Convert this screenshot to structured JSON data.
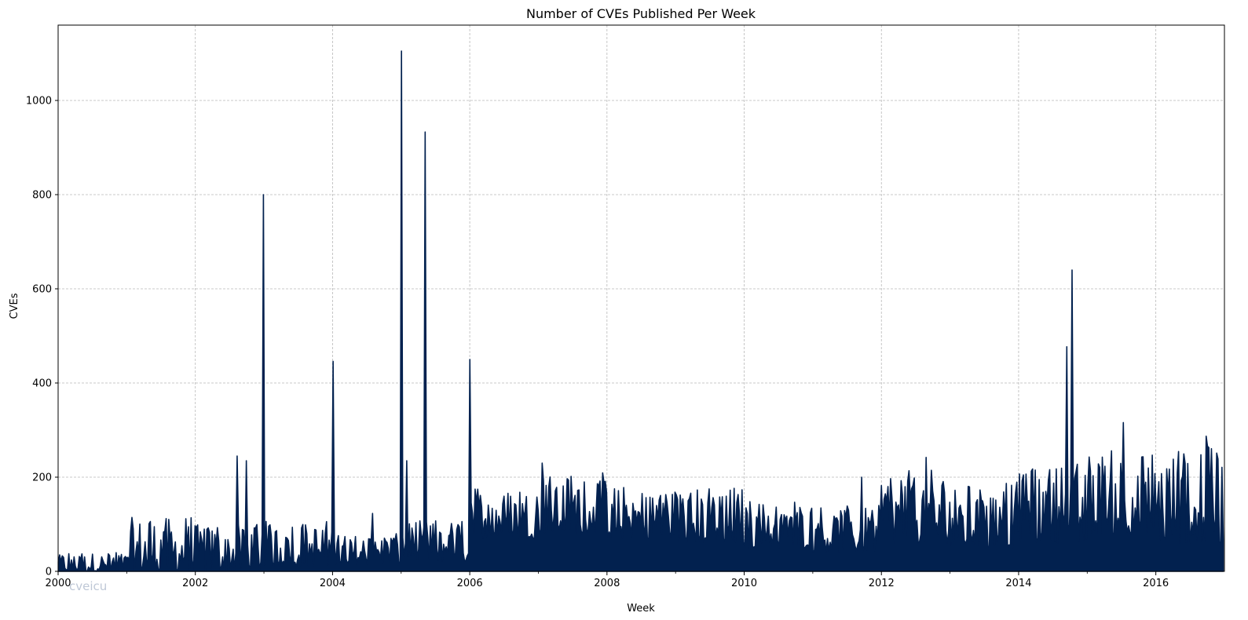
{
  "chart_data": {
    "type": "area",
    "title": "Number of CVEs Published Per Week",
    "xlabel": "Week",
    "ylabel": "CVEs",
    "xlim": [
      2000,
      2017
    ],
    "ylim": [
      0,
      1160
    ],
    "x_major_ticks": [
      2000,
      2002,
      2004,
      2006,
      2008,
      2010,
      2012,
      2014,
      2016
    ],
    "x_tick_labels": [
      "2000",
      "2002",
      "2004",
      "2006",
      "2008",
      "2010",
      "2012",
      "2014",
      "2016"
    ],
    "y_ticks": [
      0,
      200,
      400,
      600,
      800,
      1000
    ],
    "y_tick_labels": [
      "0",
      "200",
      "400",
      "600",
      "800",
      "1000"
    ],
    "grid": true,
    "color": "#02214f",
    "watermark": "cveicu",
    "series": [
      {
        "x_start": "2000-01-02",
        "frequency": "weekly",
        "peaks": [
          {
            "x": "2002-08-11",
            "value": 245
          },
          {
            "x": "2002-10-01",
            "value": 235
          },
          {
            "x": "2003-01-01",
            "value": 800
          },
          {
            "x": "2004-01-01",
            "value": 446
          },
          {
            "x": "2004-08-01",
            "value": 123
          },
          {
            "x": "2005-01-01",
            "value": 1105
          },
          {
            "x": "2005-02-01",
            "value": 235
          },
          {
            "x": "2005-05-06",
            "value": 933
          },
          {
            "x": "2006-01-01",
            "value": 450
          },
          {
            "x": "2007-01-20",
            "value": 230
          },
          {
            "x": "2011-09-20",
            "value": 200
          },
          {
            "x": "2012-08-25",
            "value": 242
          },
          {
            "x": "2014-09-15",
            "value": 477
          },
          {
            "x": "2014-10-15",
            "value": 640
          },
          {
            "x": "2015-07-15",
            "value": 316
          },
          {
            "x": "2016-09-25",
            "value": 287
          }
        ],
        "yearly_typical_range": [
          {
            "year": 2000,
            "min": 0,
            "max": 40
          },
          {
            "year": 2001,
            "min": 0,
            "max": 115
          },
          {
            "year": 2002,
            "min": 0,
            "max": 100
          },
          {
            "year": 2003,
            "min": 10,
            "max": 107
          },
          {
            "year": 2004,
            "min": 15,
            "max": 80
          },
          {
            "year": 2005,
            "min": 20,
            "max": 110
          },
          {
            "year": 2006,
            "min": 70,
            "max": 180
          },
          {
            "year": 2007,
            "min": 80,
            "max": 210
          },
          {
            "year": 2008,
            "min": 70,
            "max": 180
          },
          {
            "year": 2009,
            "min": 60,
            "max": 180
          },
          {
            "year": 2010,
            "min": 50,
            "max": 150
          },
          {
            "year": 2011,
            "min": 40,
            "max": 140
          },
          {
            "year": 2012,
            "min": 60,
            "max": 215
          },
          {
            "year": 2013,
            "min": 50,
            "max": 190
          },
          {
            "year": 2014,
            "min": 60,
            "max": 230
          },
          {
            "year": 2015,
            "min": 80,
            "max": 260
          },
          {
            "year": 2016,
            "min": 60,
            "max": 270
          }
        ]
      }
    ]
  }
}
